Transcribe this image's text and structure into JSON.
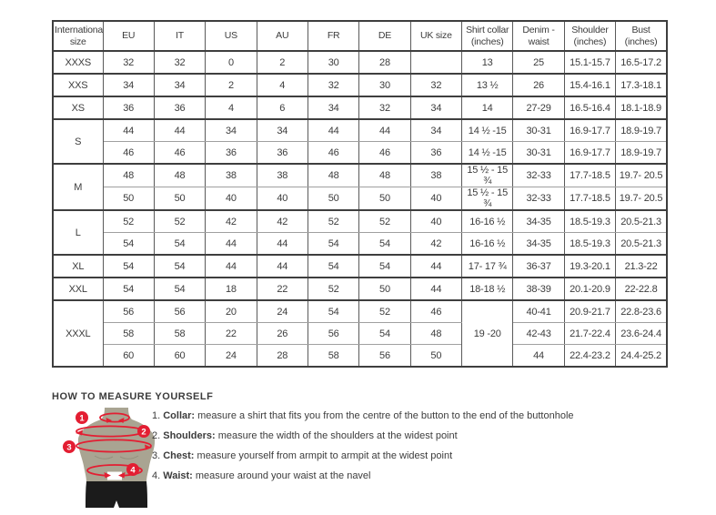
{
  "colors": {
    "accent": "#e31e32",
    "mannequin": "#a9a492",
    "shorts": "#1b1b1b",
    "border_heavy": "#3e3e3e",
    "border_light": "#a0a0a0",
    "border_vertical": "#5a5a5a",
    "text": "#3c3c3c"
  },
  "table": {
    "columns": [
      "International size",
      "EU",
      "IT",
      "US",
      "AU",
      "FR",
      "DE",
      "UK size",
      "Shirt collar (inches)",
      "Denim - waist",
      "Shoulder (inches)",
      "Bust (inches)"
    ],
    "groups": [
      {
        "size": "XXXS",
        "rows": [
          [
            "32",
            "32",
            "0",
            "2",
            "30",
            "28",
            "",
            "13",
            "25",
            "15.1-15.7",
            "16.5-17.2"
          ]
        ]
      },
      {
        "size": "XXS",
        "rows": [
          [
            "34",
            "34",
            "2",
            "4",
            "32",
            "30",
            "32",
            "13 ½",
            "26",
            "15.4-16.1",
            "17.3-18.1"
          ]
        ]
      },
      {
        "size": "XS",
        "rows": [
          [
            "36",
            "36",
            "4",
            "6",
            "34",
            "32",
            "34",
            "14",
            "27-29",
            "16.5-16.4",
            "18.1-18.9"
          ]
        ]
      },
      {
        "size": "S",
        "rows": [
          [
            "44",
            "44",
            "34",
            "34",
            "44",
            "44",
            "34",
            "14 ½ -15",
            "30-31",
            "16.9-17.7",
            "18.9-19.7"
          ],
          [
            "46",
            "46",
            "36",
            "36",
            "46",
            "46",
            "36",
            "14 ½ -15",
            "30-31",
            "16.9-17.7",
            "18.9-19.7"
          ]
        ]
      },
      {
        "size": "M",
        "rows": [
          [
            "48",
            "48",
            "38",
            "38",
            "48",
            "48",
            "38",
            "15 ½ - 15 ¾",
            "32-33",
            "17.7-18.5",
            "19.7- 20.5"
          ],
          [
            "50",
            "50",
            "40",
            "40",
            "50",
            "50",
            "40",
            "15 ½ - 15 ¾",
            "32-33",
            "17.7-18.5",
            "19.7- 20.5"
          ]
        ]
      },
      {
        "size": "L",
        "rows": [
          [
            "52",
            "52",
            "42",
            "42",
            "52",
            "52",
            "40",
            "16-16 ½",
            "34-35",
            "18.5-19.3",
            "20.5-21.3"
          ],
          [
            "54",
            "54",
            "44",
            "44",
            "54",
            "54",
            "42",
            "16-16 ½",
            "34-35",
            "18.5-19.3",
            "20.5-21.3"
          ]
        ]
      },
      {
        "size": "XL",
        "rows": [
          [
            "54",
            "54",
            "44",
            "44",
            "54",
            "54",
            "44",
            "17- 17 ¾",
            "36-37",
            "19.3-20.1",
            "21.3-22"
          ]
        ]
      },
      {
        "size": "XXL",
        "rows": [
          [
            "54",
            "54",
            "18",
            "22",
            "52",
            "50",
            "44",
            "18-18 ½",
            "38-39",
            "20.1-20.9",
            "22-22.8"
          ]
        ]
      },
      {
        "size": "XXXL",
        "rows": [
          [
            "56",
            "56",
            "20",
            "24",
            "54",
            "52",
            "46",
            {
              "text": "19 -20",
              "rowspan": 3
            },
            "40-41",
            "20.9-21.7",
            "22.8-23.6"
          ],
          [
            "58",
            "58",
            "22",
            "26",
            "56",
            "54",
            "48",
            null,
            "42-43",
            "21.7-22.4",
            "23.6-24.4"
          ],
          [
            "60",
            "60",
            "24",
            "28",
            "58",
            "56",
            "50",
            null,
            "44",
            "22.4-23.2",
            "24.4-25.2"
          ]
        ]
      }
    ]
  },
  "measure": {
    "heading": "HOW TO MEASURE YOURSELF",
    "badges": [
      "1",
      "2",
      "3",
      "4"
    ],
    "instructions": [
      {
        "num": "1.",
        "label": "Collar:",
        "text": "measure a shirt that fits you from the centre of the button to the end of the buttonhole"
      },
      {
        "num": "2.",
        "label": "Shoulders:",
        "text": "measure the width of the shoulders at the widest point"
      },
      {
        "num": "3.",
        "label": "Chest:",
        "text": "measure yourself from armpit to armpit at the widest point"
      },
      {
        "num": "4.",
        "label": "Waist:",
        "text": "measure around your waist at the navel"
      }
    ]
  }
}
